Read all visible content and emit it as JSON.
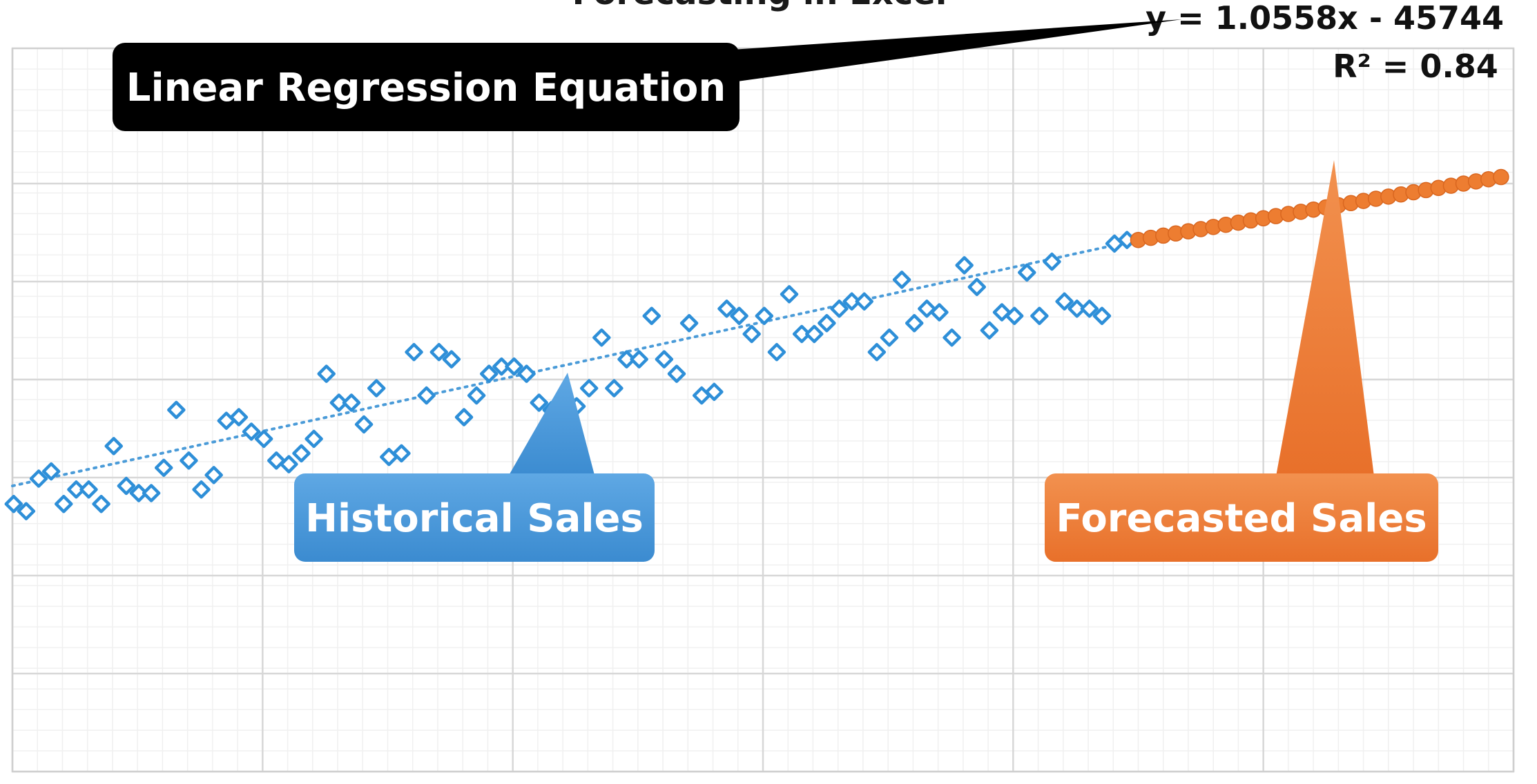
{
  "chart_data": {
    "type": "scatter",
    "title": "Forecasting in Excel",
    "xlabel": "",
    "ylabel": "",
    "xlim": [
      0,
      120
    ],
    "ylim": [
      0,
      100
    ],
    "grid": true,
    "series": [
      {
        "key": "historical",
        "marker": "diamond-hollow",
        "color": "#2e8fd8",
        "points": [
          [
            0.1,
            37
          ],
          [
            1.1,
            36
          ],
          [
            2.1,
            40.5
          ],
          [
            3.1,
            41.5
          ],
          [
            4.1,
            37
          ],
          [
            5.1,
            39
          ],
          [
            6.1,
            39
          ],
          [
            7.1,
            37
          ],
          [
            8.1,
            45
          ],
          [
            9.1,
            39.5
          ],
          [
            10.1,
            38.5
          ],
          [
            11.1,
            38.5
          ],
          [
            12.1,
            42
          ],
          [
            13.1,
            50
          ],
          [
            14.1,
            43
          ],
          [
            15.1,
            39
          ],
          [
            16.1,
            41
          ],
          [
            17.1,
            48.5
          ],
          [
            18.1,
            49
          ],
          [
            19.1,
            47
          ],
          [
            20.1,
            46
          ],
          [
            21.1,
            43
          ],
          [
            22.1,
            42.5
          ],
          [
            23.1,
            44
          ],
          [
            24.1,
            46
          ],
          [
            25.1,
            55
          ],
          [
            26.1,
            51
          ],
          [
            27.1,
            51
          ],
          [
            28.1,
            48
          ],
          [
            29.1,
            53
          ],
          [
            30.1,
            43.5
          ],
          [
            31.1,
            44
          ],
          [
            32.1,
            58
          ],
          [
            33.1,
            52
          ],
          [
            34.1,
            58
          ],
          [
            35.1,
            57
          ],
          [
            36.1,
            49
          ],
          [
            37.1,
            52
          ],
          [
            38.1,
            55
          ],
          [
            39.1,
            56
          ],
          [
            40.1,
            56
          ],
          [
            41.1,
            55
          ],
          [
            42.1,
            51
          ],
          [
            43.1,
            50
          ],
          [
            44.1,
            50.5
          ],
          [
            45.1,
            50.5
          ],
          [
            46.1,
            53
          ],
          [
            47.1,
            60
          ],
          [
            48.1,
            53
          ],
          [
            49.1,
            57
          ],
          [
            50.1,
            57
          ],
          [
            51.1,
            63
          ],
          [
            52.1,
            57
          ],
          [
            53.1,
            55
          ],
          [
            54.1,
            62
          ],
          [
            55.1,
            52
          ],
          [
            56.1,
            52.5
          ],
          [
            57.1,
            64
          ],
          [
            58.1,
            63
          ],
          [
            59.1,
            60.5
          ],
          [
            60.1,
            63
          ],
          [
            61.1,
            58
          ],
          [
            62.1,
            66
          ],
          [
            63.1,
            60.5
          ],
          [
            64.1,
            60.5
          ],
          [
            65.1,
            62
          ],
          [
            66.1,
            64
          ],
          [
            67.1,
            65
          ],
          [
            68.1,
            65
          ],
          [
            69.1,
            58
          ],
          [
            70.1,
            60
          ],
          [
            71.1,
            68
          ],
          [
            72.1,
            62
          ],
          [
            73.1,
            64
          ],
          [
            74.1,
            63.5
          ],
          [
            75.1,
            60
          ],
          [
            76.1,
            70
          ],
          [
            77.1,
            67
          ],
          [
            78.1,
            61
          ],
          [
            79.1,
            63.5
          ],
          [
            80.1,
            63
          ],
          [
            81.1,
            69
          ],
          [
            82.1,
            63
          ],
          [
            83.1,
            70.5
          ],
          [
            84.1,
            65
          ],
          [
            85.1,
            64
          ],
          [
            86.1,
            64
          ],
          [
            87.1,
            63
          ],
          [
            88.1,
            73
          ],
          [
            89.1,
            73.5
          ]
        ]
      },
      {
        "key": "forecast",
        "marker": "circle-filled",
        "color": "#ed7d31",
        "points": [
          [
            90,
            73.5
          ],
          [
            91,
            73.8
          ],
          [
            92,
            74.1
          ],
          [
            93,
            74.4
          ],
          [
            94,
            74.7
          ],
          [
            95,
            75
          ],
          [
            96,
            75.3
          ],
          [
            97,
            75.6
          ],
          [
            98,
            75.9
          ],
          [
            99,
            76.2
          ],
          [
            100,
            76.5
          ],
          [
            101,
            76.8
          ],
          [
            102,
            77.1
          ],
          [
            103,
            77.4
          ],
          [
            104,
            77.7
          ],
          [
            105,
            78
          ],
          [
            106,
            78.3
          ],
          [
            107,
            78.6
          ],
          [
            108,
            78.9
          ],
          [
            109,
            79.2
          ],
          [
            110,
            79.5
          ],
          [
            111,
            79.8
          ],
          [
            112,
            80.1
          ],
          [
            113,
            80.4
          ],
          [
            114,
            80.7
          ],
          [
            115,
            81
          ],
          [
            116,
            81.3
          ],
          [
            117,
            81.6
          ],
          [
            118,
            81.9
          ],
          [
            119,
            82.2
          ]
        ]
      }
    ],
    "trendline": {
      "style": "dotted",
      "color": "#4a9bd8",
      "x": [
        0,
        90
      ],
      "y": [
        39.5,
        73.5
      ]
    },
    "equation": "y = 1.0558x - 45744",
    "r_squared": "R² = 0.84",
    "annotations": [
      {
        "key": "equation",
        "text": "Linear Regression Equation",
        "color": "#000000"
      },
      {
        "key": "historical",
        "text": "Historical Sales",
        "color": "#4b9bd8"
      },
      {
        "key": "forecast",
        "text": "Forecasted Sales",
        "color": "#ed7d31"
      }
    ]
  }
}
